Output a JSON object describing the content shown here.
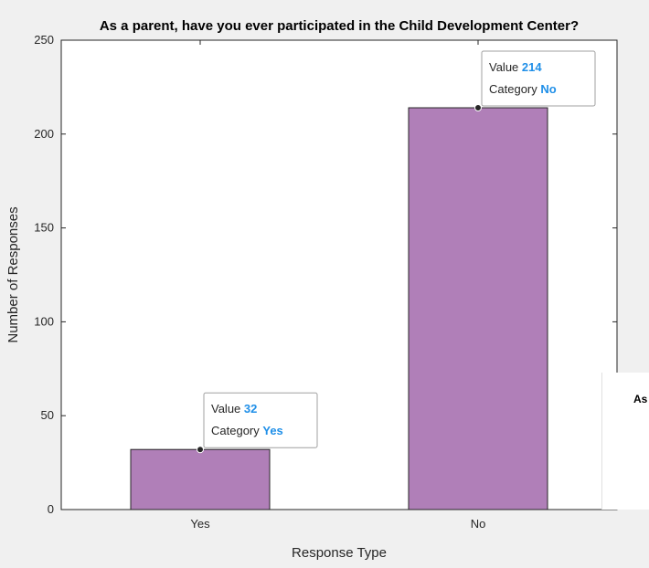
{
  "chart_data": {
    "type": "bar",
    "title": "As a parent, have you ever participated in the Child Development Center?",
    "xlabel": "Response Type",
    "ylabel": "Number of Responses",
    "categories": [
      "Yes",
      "No"
    ],
    "values": [
      32,
      214
    ],
    "ylim": [
      0,
      250
    ],
    "yticks": [
      0,
      50,
      100,
      150,
      200,
      250
    ],
    "bar_color": "#b07fb8",
    "grid": false,
    "datatips": [
      {
        "value_label": "Value",
        "value": "32",
        "category_label": "Category",
        "category": "Yes"
      },
      {
        "value_label": "Value",
        "value": "214",
        "category_label": "Category",
        "category": "No"
      }
    ]
  },
  "overlay": {
    "text": "As"
  }
}
